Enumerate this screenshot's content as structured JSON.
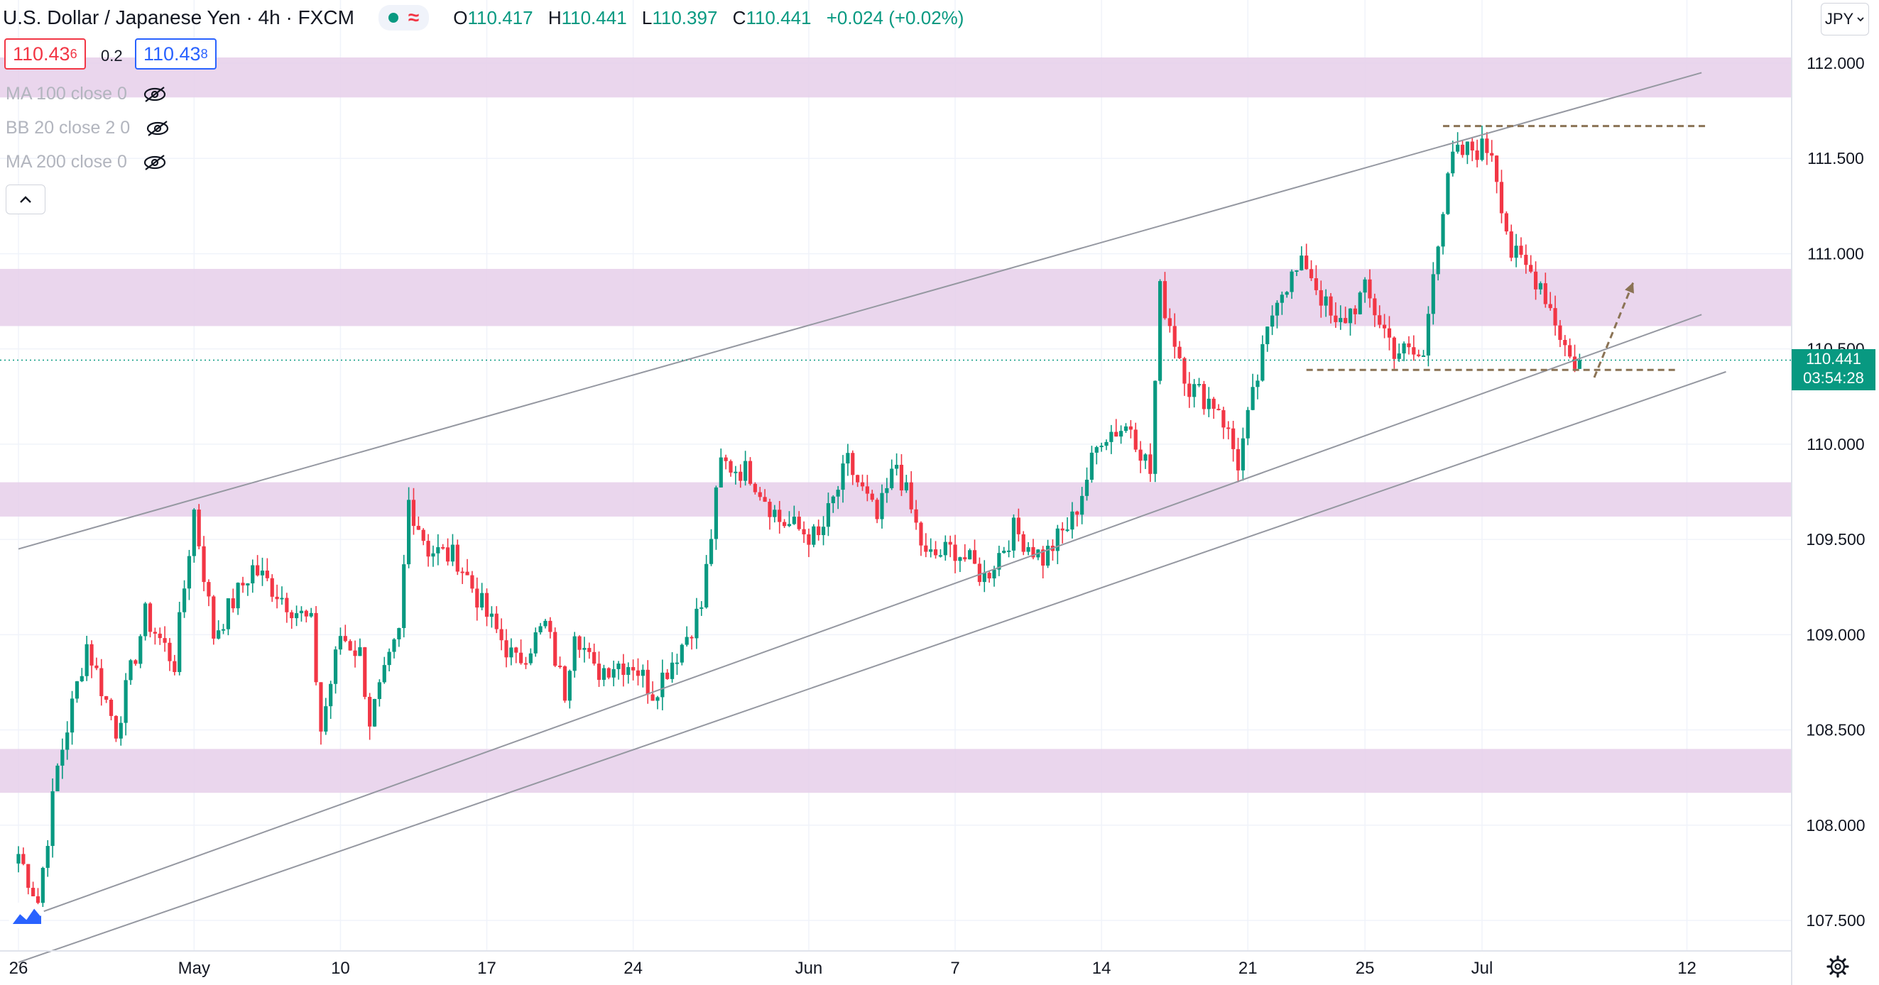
{
  "header": {
    "title": "U.S. Dollar / Japanese Yen · 4h · FXCM",
    "ohlc": [
      {
        "label": "O",
        "value": "110.417"
      },
      {
        "label": "H",
        "value": "110.441"
      },
      {
        "label": "L",
        "value": "110.397"
      },
      {
        "label": "C",
        "value": "110.441"
      }
    ],
    "change": "+0.024 (+0.02%)"
  },
  "quote": {
    "bid_main": "110.43",
    "bid_sup": "6",
    "spread": "0.2",
    "ask_main": "110.43",
    "ask_sup": "8"
  },
  "indicators": [
    {
      "label": "MA 100 close 0"
    },
    {
      "label": "BB 20 close 2 0"
    },
    {
      "label": "MA 200 close 0"
    }
  ],
  "currency": "JPY",
  "current_price": {
    "value": "110.441",
    "countdown": "03:54:28"
  },
  "colors": {
    "up": "#089981",
    "down": "#f23645",
    "zone": "#e6cfea",
    "trendline": "#9598a1",
    "level": "#8b7355",
    "accent": "#2962ff"
  },
  "chart_data": {
    "type": "candlestick",
    "ylim": [
      107.25,
      112.2
    ],
    "y_ticks": [
      "112.000",
      "111.500",
      "111.000",
      "110.500",
      "110.000",
      "109.500",
      "109.000",
      "108.500",
      "108.000",
      "107.500"
    ],
    "y_tick_values": [
      112.0,
      111.5,
      111.0,
      110.5,
      110.0,
      109.5,
      109.0,
      108.5,
      108.0,
      107.5
    ],
    "x_ticks": [
      "26",
      "May",
      "10",
      "17",
      "24",
      "Jun",
      "7",
      "14",
      "21",
      "25",
      "Jul",
      "12"
    ],
    "x_tick_bar_index": [
      0,
      36,
      66,
      96,
      126,
      162,
      192,
      222,
      252,
      276,
      300,
      342
    ],
    "bar_count_visible": 366,
    "waypoints": [
      [
        0,
        107.85
      ],
      [
        4,
        107.6
      ],
      [
        8,
        108.3
      ],
      [
        14,
        108.95
      ],
      [
        20,
        108.5
      ],
      [
        26,
        109.1
      ],
      [
        32,
        108.85
      ],
      [
        36,
        109.65
      ],
      [
        40,
        109.0
      ],
      [
        48,
        109.35
      ],
      [
        54,
        109.2
      ],
      [
        60,
        109.05
      ],
      [
        62,
        108.5
      ],
      [
        66,
        109.0
      ],
      [
        70,
        108.9
      ],
      [
        72,
        108.55
      ],
      [
        78,
        109.0
      ],
      [
        80,
        109.7
      ],
      [
        84,
        109.45
      ],
      [
        90,
        109.4
      ],
      [
        96,
        109.1
      ],
      [
        102,
        108.85
      ],
      [
        108,
        109.05
      ],
      [
        112,
        108.7
      ],
      [
        114,
        109.05
      ],
      [
        118,
        108.8
      ],
      [
        122,
        108.85
      ],
      [
        126,
        108.85
      ],
      [
        130,
        108.7
      ],
      [
        136,
        108.95
      ],
      [
        140,
        109.15
      ],
      [
        144,
        109.9
      ],
      [
        150,
        109.85
      ],
      [
        156,
        109.6
      ],
      [
        160,
        109.55
      ],
      [
        164,
        109.5
      ],
      [
        170,
        109.9
      ],
      [
        176,
        109.6
      ],
      [
        180,
        109.9
      ],
      [
        186,
        109.4
      ],
      [
        192,
        109.45
      ],
      [
        198,
        109.3
      ],
      [
        204,
        109.55
      ],
      [
        210,
        109.4
      ],
      [
        216,
        109.6
      ],
      [
        222,
        110.05
      ],
      [
        228,
        110.1
      ],
      [
        232,
        109.85
      ],
      [
        234,
        110.8
      ],
      [
        240,
        110.3
      ],
      [
        246,
        110.2
      ],
      [
        250,
        109.9
      ],
      [
        254,
        110.35
      ],
      [
        258,
        110.8
      ],
      [
        264,
        110.95
      ],
      [
        270,
        110.6
      ],
      [
        276,
        110.8
      ],
      [
        282,
        110.5
      ],
      [
        288,
        110.45
      ],
      [
        290,
        110.95
      ],
      [
        294,
        111.5
      ],
      [
        298,
        111.55
      ],
      [
        302,
        111.55
      ],
      [
        306,
        111.0
      ],
      [
        312,
        110.85
      ],
      [
        318,
        110.45
      ],
      [
        320,
        110.42
      ]
    ],
    "zones": [
      [
        111.82,
        112.03
      ],
      [
        110.62,
        110.92
      ],
      [
        109.62,
        109.8
      ],
      [
        108.17,
        108.4
      ]
    ],
    "trendlines": [
      {
        "from": [
          0,
          109.45
        ],
        "to": [
          345,
          111.95
        ]
      },
      {
        "from": [
          0,
          107.5
        ],
        "to": [
          345,
          110.68
        ]
      },
      {
        "from": [
          0,
          107.28
        ],
        "to": [
          350,
          110.38
        ]
      }
    ],
    "levels": [
      {
        "from": [
          292,
          111.67
        ],
        "to": [
          346,
          111.67
        ]
      },
      {
        "from": [
          264,
          110.39
        ],
        "to": [
          340,
          110.39
        ]
      }
    ],
    "projection": {
      "from": [
        323,
        110.35
      ],
      "to": [
        331,
        110.85
      ]
    },
    "last_price": 110.441
  }
}
